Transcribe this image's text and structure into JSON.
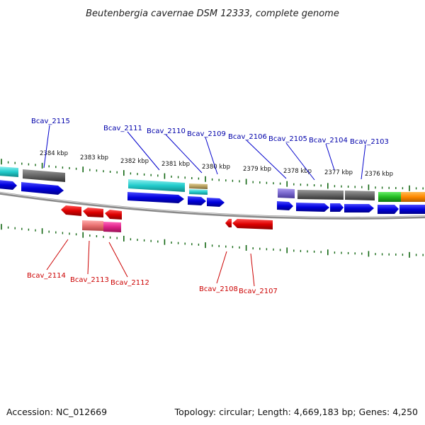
{
  "title": "Beutenbergia cavernae DSM 12333, complete genome",
  "footer": {
    "accession": "Accession: NC_012669",
    "summary": "Topology: circular; Length: 4,669,183 bp; Genes: 4,250"
  },
  "scale_labels": [
    "2384 kbp",
    "2383 kbp",
    "2382 kbp",
    "2381 kbp",
    "2380 kbp",
    "2379 kbp",
    "2378 kbp",
    "2377 kbp",
    "2376 kbp"
  ],
  "top_labels": [
    "Bcav_2115",
    "Bcav_2111",
    "Bcav_2110",
    "Bcav_2109",
    "Bcav_2106",
    "Bcav_2105",
    "Bcav_2104",
    "Bcav_2103"
  ],
  "bottom_labels": [
    "Bcav_2114",
    "Bcav_2113",
    "Bcav_2112",
    "Bcav_2108",
    "Bcav_2107"
  ],
  "colors": {
    "forward_cds": "#0000dd",
    "reverse_cds": "#dd0000",
    "top_label": "#0000aa",
    "bottom_label": "#cc0000",
    "tick": "#116611",
    "backbone": "#999999",
    "gray_feature": "#666666",
    "cyan_feature": "#22cccc",
    "tan_feature": "#b8a060",
    "purple_feature": "#7766cc",
    "green_feature": "#22bb22",
    "orange_feature": "#ff8800",
    "salmon_feature": "#e87070",
    "magenta_feature": "#dd2288"
  }
}
